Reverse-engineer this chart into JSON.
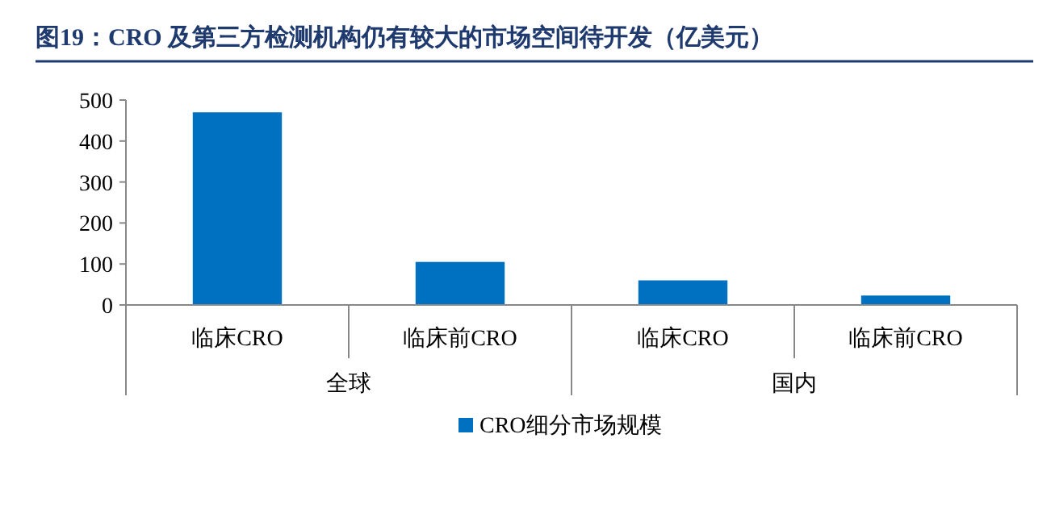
{
  "chart_data": {
    "type": "bar",
    "title": "图19：CRO 及第三方检测机构仍有较大的市场空间待开发（亿美元）",
    "categories": [
      "临床CRO",
      "临床前CRO",
      "临床CRO",
      "临床前CRO"
    ],
    "annotations": [
      "全球",
      "国内"
    ],
    "series": [
      {
        "name": "CRO细分市场规模",
        "color": "#0070c0",
        "values": [
          470,
          105,
          60,
          23
        ]
      }
    ],
    "ylim": [
      0,
      500
    ],
    "yticks": [
      0,
      100,
      200,
      300,
      400,
      500
    ],
    "grid": false,
    "legend": "bottom"
  }
}
